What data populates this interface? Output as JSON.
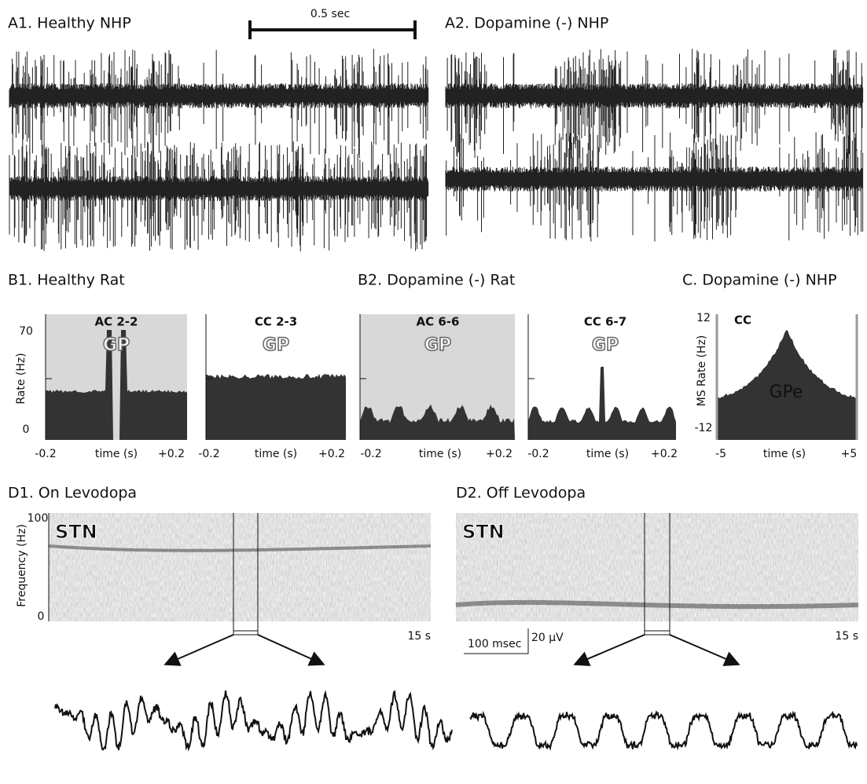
{
  "panels": {
    "a1": {
      "title": "A1. Healthy NHP",
      "scale_bar": "0.5 sec"
    },
    "a2": {
      "title": "A2. Dopamine (-) NHP"
    },
    "b1": {
      "title": "B1. Healthy Rat",
      "y_label": "Rate (Hz)",
      "y_top": "70",
      "y_bottom": "0",
      "plots": [
        {
          "title": "AC 2-2",
          "region": "GP"
        },
        {
          "title": "CC 2-3",
          "region": "GP"
        }
      ],
      "x_ticks": [
        "-0.2",
        "time (s)",
        "+0.2"
      ]
    },
    "b2": {
      "title": "B2. Dopamine (-) Rat",
      "plots": [
        {
          "title": "AC 6-6",
          "region": "GP"
        },
        {
          "title": "CC 6-7",
          "region": "GP"
        }
      ],
      "x_ticks": [
        "-0.2",
        "time (s)",
        "+0.2"
      ]
    },
    "c": {
      "title": "C. Dopamine (-) NHP",
      "y_label": "MS Rate (Hz)",
      "y_top": "12",
      "y_bottom": "-12",
      "plot_title": "CC",
      "region": "GPe",
      "x_ticks": [
        "-5",
        "time (s)",
        "+5"
      ]
    },
    "d1": {
      "title": "D1. On Levodopa",
      "y_label": "Frequency (Hz)",
      "y_top": "100",
      "y_bottom": "0",
      "region": "STN",
      "duration": "15 s"
    },
    "d2": {
      "title": "D2. Off Levodopa",
      "region": "STN",
      "duration": "15 s",
      "time_scale": "100 msec",
      "amp_scale": "20 µV"
    }
  }
}
